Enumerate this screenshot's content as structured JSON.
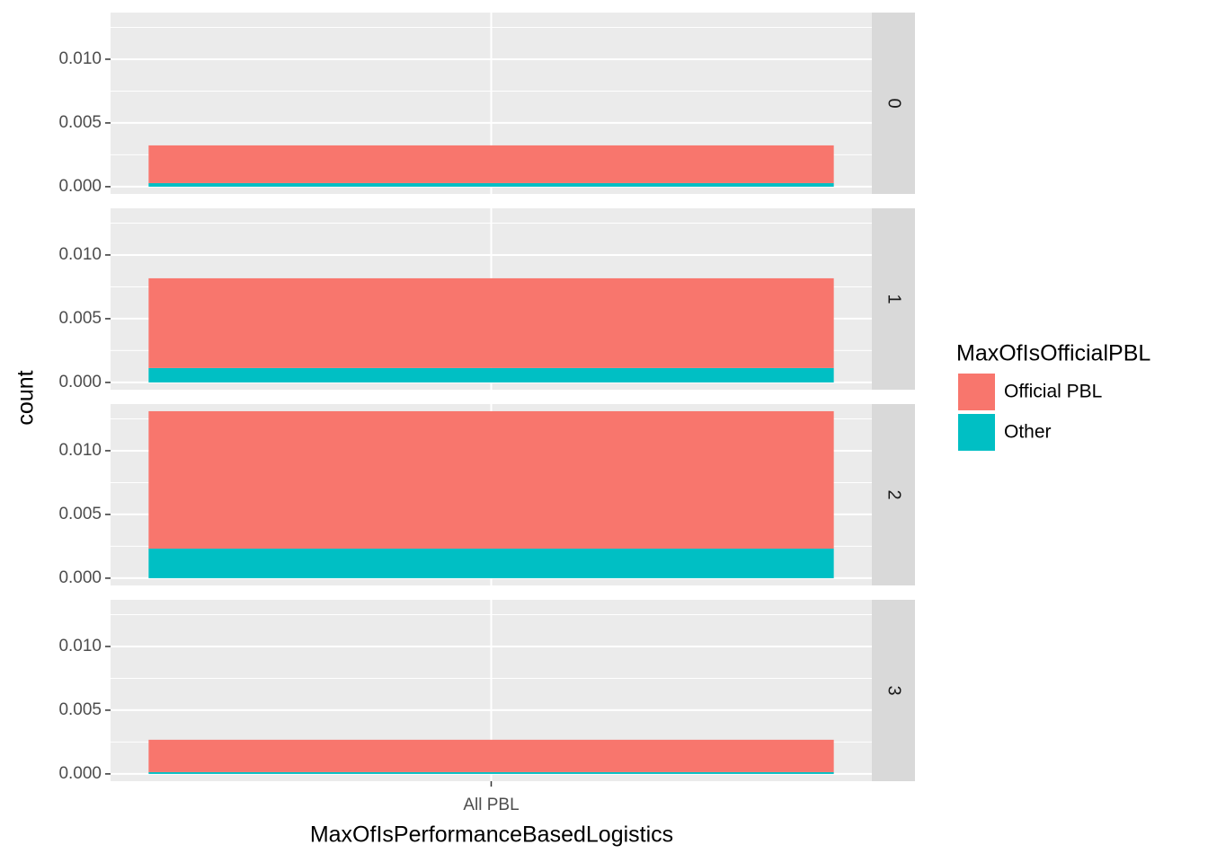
{
  "chart_data": {
    "type": "bar",
    "x_label": "MaxOfIsPerformanceBasedLogistics",
    "y_label": "count",
    "legend_title": "MaxOfIsOfficialPBL",
    "categories": [
      "All PBL"
    ],
    "series": [
      {
        "name": "Official PBL",
        "color": "#f8766d"
      },
      {
        "name": "Other",
        "color": "#00bfc4"
      }
    ],
    "ylim": [
      -0.00057,
      0.01366
    ],
    "yticks": [
      {
        "value": 0,
        "label": "0.000"
      },
      {
        "value": 0.005,
        "label": "0.005"
      },
      {
        "value": 0.01,
        "label": "0.010"
      }
    ],
    "grid": true,
    "facets": [
      {
        "label": "0",
        "values": [
          0.00296,
          0.00028
        ]
      },
      {
        "label": "1",
        "values": [
          0.00704,
          0.00113
        ]
      },
      {
        "label": "2",
        "values": [
          0.01078,
          0.00232
        ]
      },
      {
        "label": "3",
        "values": [
          0.00254,
          0.00014
        ]
      }
    ]
  }
}
